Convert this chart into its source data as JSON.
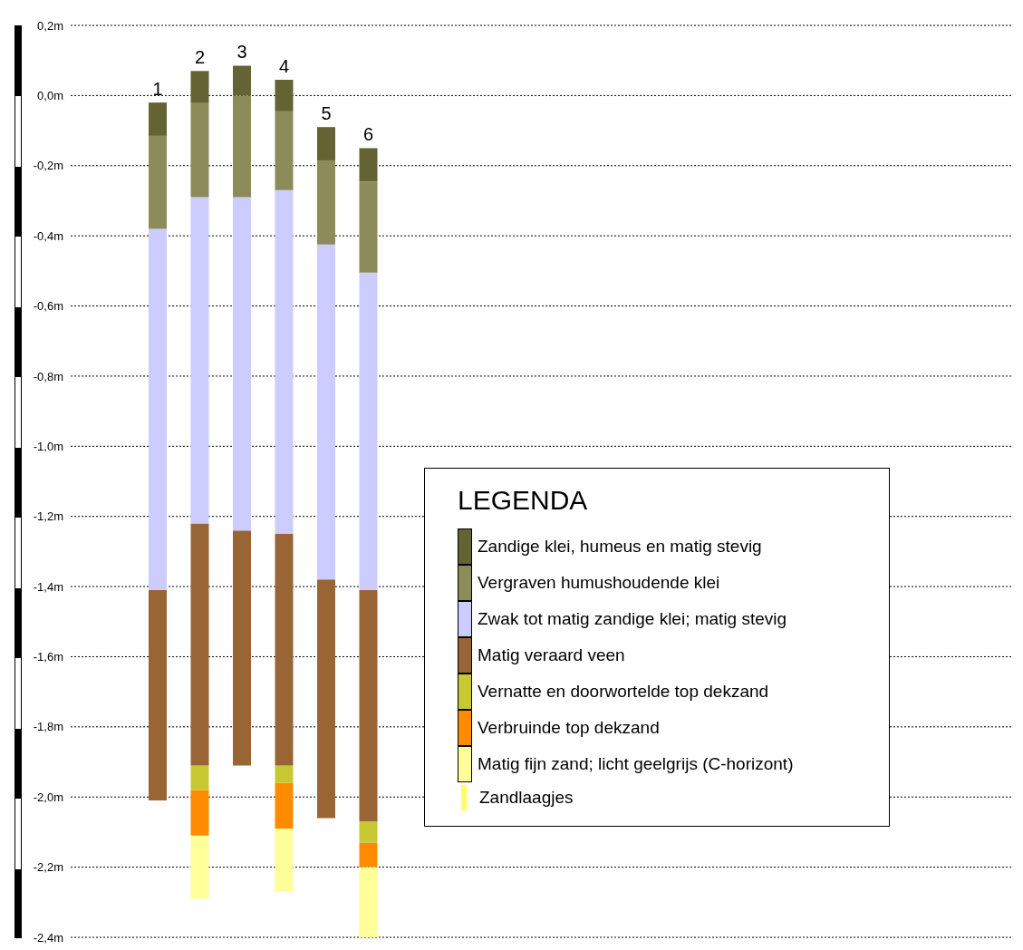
{
  "chart_data": {
    "type": "bar",
    "legend_title": "LEGENDA",
    "categories": [
      "1",
      "2",
      "3",
      "4",
      "5",
      "6"
    ],
    "series": [
      {
        "name": "Matig fijn zand; licht geelgrijs (C-horizont)",
        "color": "#ffff99",
        "base": [
          null,
          -2.29,
          null,
          -2.27,
          null,
          -2.4
        ],
        "values": [
          null,
          0.18,
          null,
          0.18,
          null,
          0.2
        ]
      },
      {
        "name": "Verbruinde top dekzand",
        "color": "#ff8c00",
        "base": [
          null,
          -2.11,
          null,
          -2.09,
          null,
          -2.2
        ],
        "values": [
          null,
          0.13,
          null,
          0.13,
          null,
          0.07
        ]
      },
      {
        "name": "Vernatte en doorwortelde top dekzand",
        "color": "#c8c832",
        "base": [
          null,
          -1.98,
          null,
          -1.96,
          null,
          -2.13
        ],
        "values": [
          null,
          0.07,
          null,
          0.05,
          null,
          0.06
        ]
      },
      {
        "name": "Matig veraard veen",
        "color": "#9a6535",
        "base": [
          -2.01,
          -1.91,
          -1.91,
          -1.91,
          -2.06,
          -2.07
        ],
        "values": [
          0.6,
          0.69,
          0.67,
          0.66,
          0.68,
          0.66
        ]
      },
      {
        "name": "Zwak tot matig zandige klei; matig stevig",
        "color": "#ccccff",
        "base": [
          -1.41,
          -1.22,
          -1.24,
          -1.25,
          -1.38,
          -1.41
        ],
        "values": [
          1.03,
          0.93,
          0.95,
          0.98,
          0.955,
          0.905
        ]
      },
      {
        "name": "Vergraven humushoudende klei",
        "color": "#8c8c5a",
        "base": [
          -0.38,
          -0.29,
          -0.29,
          -0.27,
          -0.425,
          -0.505
        ],
        "values": [
          0.265,
          0.27,
          0.29,
          0.225,
          0.24,
          0.26
        ]
      },
      {
        "name": "Zandige klei, humeus en matig stevig",
        "color": "#636334",
        "base": [
          -0.115,
          -0.02,
          0,
          -0.045,
          -0.185,
          -0.245
        ],
        "values": [
          0.095,
          0.09,
          0.085,
          0.09,
          0.095,
          0.095
        ]
      }
    ],
    "ylim": [
      -2.4,
      0.2
    ],
    "yticks": [
      {
        "value": 0.2,
        "label": "0,2m"
      },
      {
        "value": 0,
        "label": "0,0m"
      },
      {
        "value": -0.2,
        "label": "-0,2m"
      },
      {
        "value": -0.4,
        "label": "-0,4m"
      },
      {
        "value": -0.6,
        "label": "-0,6m"
      },
      {
        "value": -0.8,
        "label": "-0,8m"
      },
      {
        "value": -1,
        "label": "-1,0m"
      },
      {
        "value": -1.2,
        "label": "-1,2m"
      },
      {
        "value": -1.4,
        "label": "-1,4m"
      },
      {
        "value": -1.6,
        "label": "-1,6m"
      },
      {
        "value": -1.8,
        "label": "-1,8m"
      },
      {
        "value": -2,
        "label": "-2,0m"
      },
      {
        "value": -2.2,
        "label": "-2,2m"
      },
      {
        "value": -2.4,
        "label": "-2,4m"
      }
    ],
    "grid": "y",
    "legend": "right",
    "annotations": [
      "Zandlaagjes"
    ]
  }
}
